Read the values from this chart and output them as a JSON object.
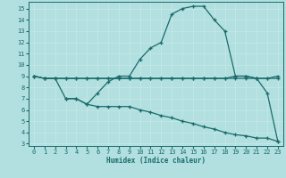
{
  "xlabel": "Humidex (Indice chaleur)",
  "bg_color": "#b2dfdf",
  "line_color": "#1a6b6b",
  "grid_color": "#c8e8e8",
  "xlim": [
    -0.5,
    23.5
  ],
  "ylim": [
    2.8,
    15.6
  ],
  "yticks": [
    3,
    4,
    5,
    6,
    7,
    8,
    9,
    10,
    11,
    12,
    13,
    14,
    15
  ],
  "xticks": [
    0,
    1,
    2,
    3,
    4,
    5,
    6,
    7,
    8,
    9,
    10,
    11,
    12,
    13,
    14,
    15,
    16,
    17,
    18,
    19,
    20,
    21,
    22,
    23
  ],
  "curve_x": [
    0,
    1,
    2,
    3,
    4,
    5,
    6,
    7,
    8,
    9,
    10,
    11,
    12,
    13,
    14,
    15,
    16,
    17,
    18,
    19,
    20,
    21,
    22,
    23
  ],
  "curve_y": [
    9.0,
    8.8,
    8.8,
    7.0,
    7.0,
    6.5,
    7.5,
    8.5,
    9.0,
    9.0,
    10.5,
    11.5,
    12.0,
    14.5,
    15.0,
    15.2,
    15.2,
    14.0,
    13.0,
    9.0,
    9.0,
    8.8,
    7.5,
    3.2
  ],
  "flat1_x": [
    0,
    1,
    2,
    3,
    4,
    5,
    6,
    7,
    8,
    9,
    10,
    11,
    12,
    13,
    14,
    15,
    16,
    17,
    18,
    19,
    20,
    21,
    22,
    23
  ],
  "flat1_y": [
    9.0,
    8.8,
    8.8,
    8.8,
    8.8,
    8.8,
    8.8,
    8.8,
    8.8,
    8.8,
    8.8,
    8.8,
    8.8,
    8.8,
    8.8,
    8.8,
    8.8,
    8.8,
    8.8,
    9.0,
    9.0,
    8.8,
    8.8,
    8.8
  ],
  "flat2_x": [
    0,
    1,
    2,
    3,
    4,
    5,
    6,
    7,
    8,
    9,
    10,
    11,
    12,
    13,
    14,
    15,
    16,
    17,
    18,
    19,
    20,
    21,
    22,
    23
  ],
  "flat2_y": [
    9.0,
    8.8,
    8.8,
    8.8,
    8.8,
    8.8,
    8.8,
    8.8,
    8.8,
    8.8,
    8.8,
    8.8,
    8.8,
    8.8,
    8.8,
    8.8,
    8.8,
    8.8,
    8.8,
    8.8,
    8.8,
    8.8,
    8.8,
    9.0
  ],
  "low_x": [
    3,
    4,
    5,
    6,
    7,
    8,
    9,
    10,
    11,
    12,
    13,
    14,
    15,
    16,
    17,
    18,
    19,
    20,
    21,
    22,
    23
  ],
  "low_y": [
    7.0,
    7.0,
    6.5,
    6.3,
    6.3,
    6.3,
    6.3,
    6.0,
    5.8,
    5.5,
    5.3,
    5.0,
    4.8,
    4.5,
    4.3,
    4.0,
    3.8,
    3.7,
    3.5,
    3.5,
    3.2
  ]
}
